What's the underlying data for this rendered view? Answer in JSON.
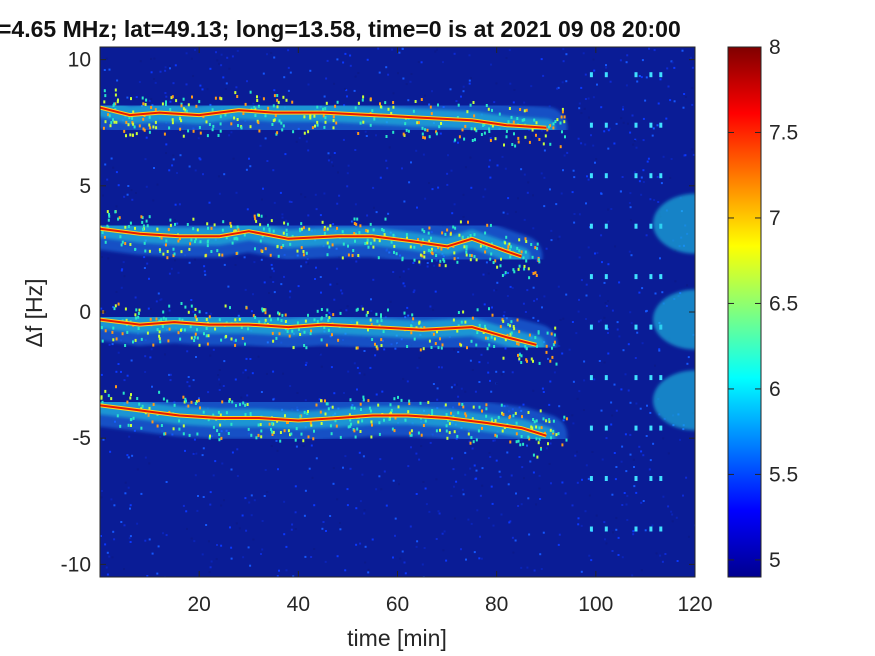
{
  "chart_data": {
    "type": "heatmap",
    "title": "=4.65 MHz;  lat=49.13; long=13.58, time=0 is at 2021 09 08 20:00",
    "xlabel": "time [min]",
    "ylabel": "Δf [Hz]",
    "xlim": [
      0,
      120
    ],
    "ylim": [
      -10.5,
      10.5
    ],
    "x_ticks": [
      20,
      40,
      60,
      80,
      100,
      120
    ],
    "x_tick_labels": [
      "20",
      "40",
      "60",
      "80",
      "100",
      "120"
    ],
    "y_ticks": [
      -10,
      -5,
      0,
      5,
      10
    ],
    "y_tick_labels": [
      "-10",
      "-5",
      "0",
      "5",
      "10"
    ],
    "colorbar": {
      "range": [
        4.9,
        8.0
      ],
      "ticks": [
        5,
        5.5,
        6,
        6.5,
        7,
        7.5,
        8
      ],
      "tick_labels": [
        "5",
        "5.5",
        "6",
        "6.5",
        "7",
        "7.5",
        "8"
      ],
      "colormap": "jet"
    },
    "grid": false,
    "background_color": "#0a1c96",
    "traces": [
      {
        "band": "upper",
        "points": [
          [
            0,
            8.1
          ],
          [
            6,
            7.8
          ],
          [
            12,
            7.9
          ],
          [
            20,
            7.8
          ],
          [
            28,
            8.0
          ],
          [
            35,
            7.9
          ],
          [
            45,
            7.9
          ],
          [
            55,
            7.8
          ],
          [
            65,
            7.7
          ],
          [
            75,
            7.6
          ],
          [
            82,
            7.4
          ],
          [
            90,
            7.3
          ]
        ]
      },
      {
        "band": "upper-mid",
        "points": [
          [
            0,
            3.3
          ],
          [
            8,
            3.1
          ],
          [
            16,
            3.0
          ],
          [
            24,
            3.0
          ],
          [
            30,
            3.2
          ],
          [
            38,
            2.9
          ],
          [
            48,
            3.0
          ],
          [
            55,
            3.0
          ],
          [
            63,
            2.8
          ],
          [
            70,
            2.6
          ],
          [
            75,
            2.9
          ],
          [
            82,
            2.4
          ],
          [
            85,
            2.2
          ]
        ]
      },
      {
        "band": "center",
        "points": [
          [
            0,
            -0.3
          ],
          [
            8,
            -0.5
          ],
          [
            15,
            -0.4
          ],
          [
            22,
            -0.5
          ],
          [
            30,
            -0.5
          ],
          [
            38,
            -0.6
          ],
          [
            45,
            -0.5
          ],
          [
            55,
            -0.6
          ],
          [
            65,
            -0.7
          ],
          [
            75,
            -0.6
          ],
          [
            82,
            -1.0
          ],
          [
            88,
            -1.3
          ]
        ]
      },
      {
        "band": "lower",
        "points": [
          [
            0,
            -3.7
          ],
          [
            8,
            -3.9
          ],
          [
            16,
            -4.1
          ],
          [
            24,
            -4.2
          ],
          [
            32,
            -4.2
          ],
          [
            40,
            -4.3
          ],
          [
            48,
            -4.2
          ],
          [
            55,
            -4.1
          ],
          [
            62,
            -4.1
          ],
          [
            70,
            -4.2
          ],
          [
            78,
            -4.4
          ],
          [
            85,
            -4.6
          ],
          [
            90,
            -4.9
          ]
        ]
      }
    ],
    "vertical_marker_columns": [
      99,
      102,
      108,
      111,
      113
    ],
    "right_edge_bands_center": [
      3.5,
      -0.3,
      -3.5
    ]
  }
}
